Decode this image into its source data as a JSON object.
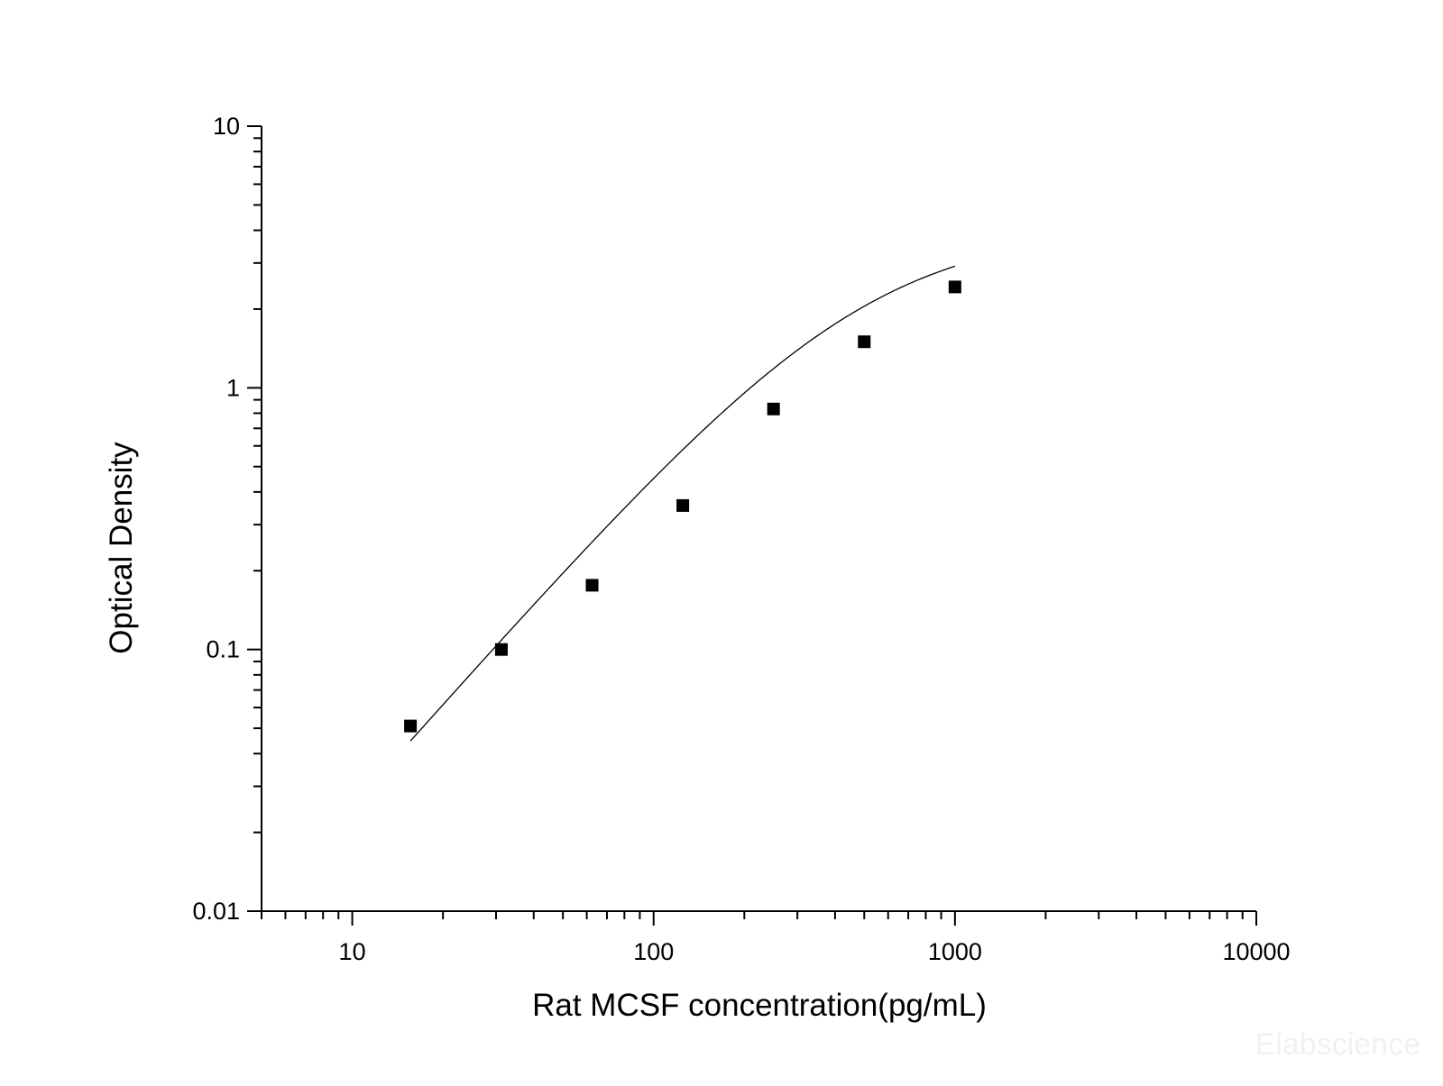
{
  "chart_data": {
    "type": "scatter",
    "title": "",
    "xlabel": "Rat MCSF concentration(pg/mL)",
    "ylabel": "Optical Density",
    "xscale": "log",
    "yscale": "log",
    "xlim": [
      5,
      10000
    ],
    "ylim": [
      0.01,
      10
    ],
    "x_ticks": [
      10,
      100,
      1000,
      10000
    ],
    "x_tick_labels": [
      "10",
      "100",
      "1000",
      "10000"
    ],
    "y_ticks": [
      0.01,
      0.1,
      1,
      10
    ],
    "y_tick_labels": [
      "0.01",
      "0.1",
      "1",
      "10"
    ],
    "grid": false,
    "legend": "none",
    "colors": {
      "marker": "#000000",
      "curve": "#000000",
      "axis": "#000000"
    },
    "series": [
      {
        "marker": "square",
        "x": [
          15.6,
          31.25,
          62.5,
          125,
          250,
          500,
          1000
        ],
        "y": [
          0.051,
          0.1,
          0.176,
          0.355,
          0.83,
          1.5,
          2.43
        ]
      }
    ],
    "fit_curve": {
      "type": "4PL",
      "A": 0.0,
      "B": 1.3,
      "C": 500,
      "D": 4.1,
      "x_range": [
        15.6,
        1000
      ]
    }
  },
  "watermark": "Elabscience"
}
